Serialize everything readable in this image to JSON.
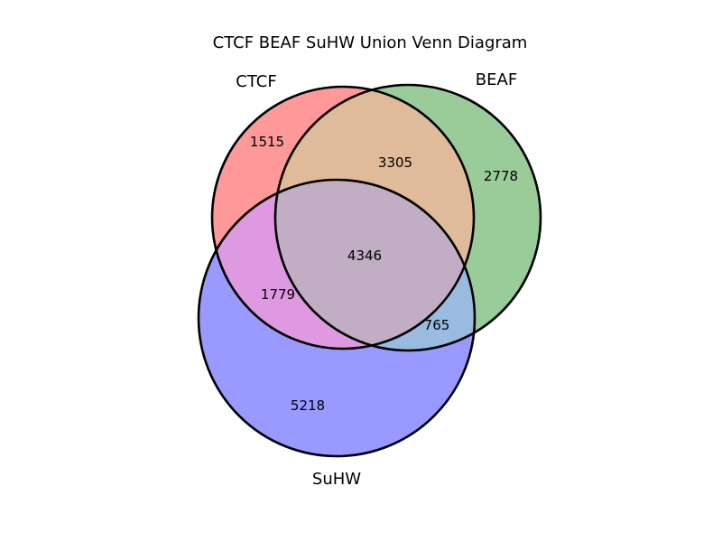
{
  "title": "CTCF BEAF SuHW Union Venn Diagram",
  "sets": {
    "ctcf": {
      "label": "CTCF",
      "color": "#ff0000"
    },
    "beaf": {
      "label": "BEAF",
      "color": "#008000"
    },
    "suhw": {
      "label": "SuHW",
      "color": "#0000ff"
    }
  },
  "regions": {
    "ctcf_only": "1515",
    "beaf_only": "2778",
    "suhw_only": "5218",
    "ctcf_beaf": "3305",
    "ctcf_suhw": "1779",
    "beaf_suhw": "765",
    "all_three": "4346"
  },
  "colors": {
    "ctcf_only": "#ff9999",
    "beaf_only": "#99cc99",
    "suhw_only": "#9999ff",
    "ctcf_beaf": "#e0bb99",
    "ctcf_suhw": "#df99e0",
    "beaf_suhw": "#99bbe0",
    "all_three": "#c1adc4",
    "outline": "#000000"
  }
}
